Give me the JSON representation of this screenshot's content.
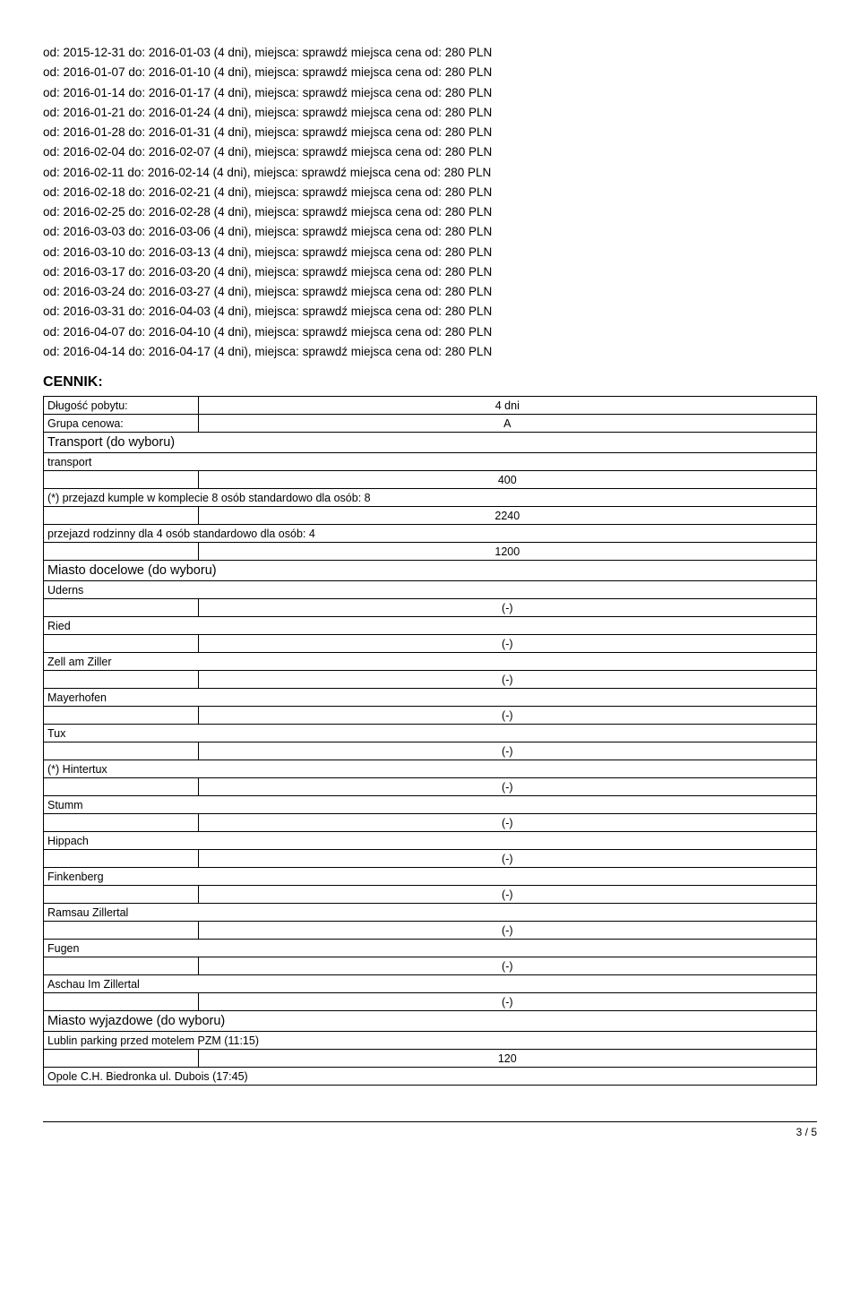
{
  "date_lines": [
    "od: 2015-12-31 do: 2016-01-03 (4 dni), miejsca: sprawdź miejsca cena od: 280 PLN",
    "od: 2016-01-07 do: 2016-01-10 (4 dni), miejsca: sprawdź miejsca cena od: 280 PLN",
    "od: 2016-01-14 do: 2016-01-17 (4 dni), miejsca: sprawdź miejsca cena od: 280 PLN",
    "od: 2016-01-21 do: 2016-01-24 (4 dni), miejsca: sprawdź miejsca cena od: 280 PLN",
    "od: 2016-01-28 do: 2016-01-31 (4 dni), miejsca: sprawdź miejsca cena od: 280 PLN",
    "od: 2016-02-04 do: 2016-02-07 (4 dni), miejsca: sprawdź miejsca cena od: 280 PLN",
    "od: 2016-02-11 do: 2016-02-14 (4 dni), miejsca: sprawdź miejsca cena od: 280 PLN",
    "od: 2016-02-18 do: 2016-02-21 (4 dni), miejsca: sprawdź miejsca cena od: 280 PLN",
    "od: 2016-02-25 do: 2016-02-28 (4 dni), miejsca: sprawdź miejsca cena od: 280 PLN",
    "od: 2016-03-03 do: 2016-03-06 (4 dni), miejsca: sprawdź miejsca cena od: 280 PLN",
    "od: 2016-03-10 do: 2016-03-13 (4 dni), miejsca: sprawdź miejsca cena od: 280 PLN",
    "od: 2016-03-17 do: 2016-03-20 (4 dni), miejsca: sprawdź miejsca cena od: 280 PLN",
    "od: 2016-03-24 do: 2016-03-27 (4 dni), miejsca: sprawdź miejsca cena od: 280 PLN",
    "od: 2016-03-31 do: 2016-04-03 (4 dni), miejsca: sprawdź miejsca cena od: 280 PLN",
    "od: 2016-04-07 do: 2016-04-10 (4 dni), miejsca: sprawdź miejsca cena od: 280 PLN",
    "od: 2016-04-14 do: 2016-04-17 (4 dni), miejsca: sprawdź miejsca cena od: 280 PLN"
  ],
  "cennik_heading": "CENNIK:",
  "stay": {
    "label": "Długość pobytu:",
    "value": "4 dni"
  },
  "price_group": {
    "label": "Grupa cenowa:",
    "value": "A"
  },
  "transport": {
    "section": "Transport (do wyboru)",
    "sub": "transport",
    "row1_value": "400",
    "row2_label": "(*) przejazd kumple w komplecie 8 osób standardowo dla osób: 8",
    "row2_value": "2240",
    "row3_label": "przejazd rodzinny dla 4 osób standardowo dla osób: 4",
    "row3_value": "1200"
  },
  "dest_city": {
    "section": "Miasto docelowe (do wyboru)",
    "items": [
      {
        "name": "Uderns",
        "value": "(-)"
      },
      {
        "name": "Ried",
        "value": "(-)"
      },
      {
        "name": "Zell am Ziller",
        "value": "(-)"
      },
      {
        "name": "Mayerhofen",
        "value": "(-)"
      },
      {
        "name": "Tux",
        "value": "(-)"
      },
      {
        "name": "(*) Hintertux",
        "value": "(-)"
      },
      {
        "name": "Stumm",
        "value": "(-)"
      },
      {
        "name": "Hippach",
        "value": "(-)"
      },
      {
        "name": "Finkenberg",
        "value": "(-)"
      },
      {
        "name": "Ramsau Zillertal",
        "value": "(-)"
      },
      {
        "name": "Fugen",
        "value": "(-)"
      },
      {
        "name": "Aschau Im Zillertal",
        "value": "(-)"
      }
    ]
  },
  "dep_city": {
    "section": "Miasto wyjazdowe (do wyboru)",
    "row1_label": "Lublin parking przed motelem PZM (11:15)",
    "row1_value": "120",
    "row2_label": "Opole C.H. Biedronka ul. Dubois (17:45)"
  },
  "page_number": "3 / 5"
}
